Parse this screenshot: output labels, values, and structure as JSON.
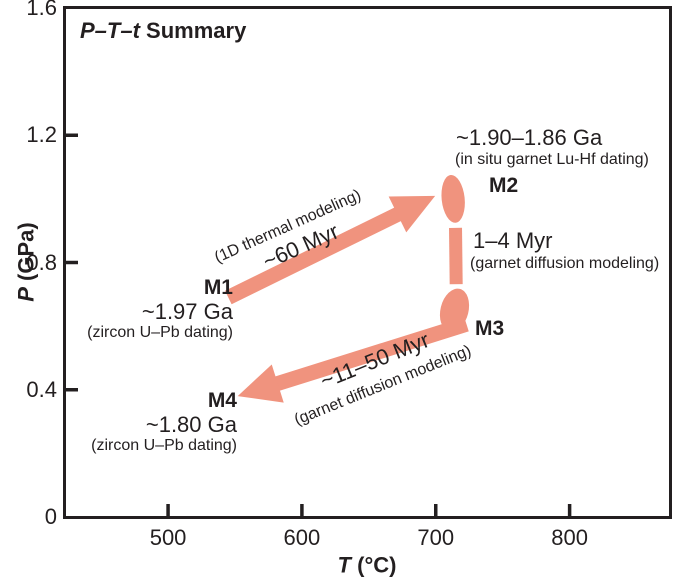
{
  "figure": {
    "title_italic": "P–T–t",
    "title_rest": " Summary",
    "xlabel_italic": "T",
    "xlabel_rest": " (°C)",
    "ylabel_italic": "P",
    "ylabel_rest": " (GPa)"
  },
  "annotations": {
    "m1": {
      "label": "M1",
      "age": "~1.97 Ga",
      "method": "(zircon U–Pb dating)"
    },
    "m2": {
      "label": "M2",
      "age": "~1.90–1.86 Ga",
      "method": "(in situ garnet Lu-Hf dating)"
    },
    "m3": {
      "label": "M3"
    },
    "m4": {
      "label": "M4",
      "age": "~1.80 Ga",
      "method": "(zircon U–Pb dating)"
    },
    "seg_m1_m2": {
      "duration": "~60 Myr",
      "method": "(1D thermal modeling)"
    },
    "seg_m2_m3": {
      "duration": "1–4 Myr",
      "method": "(garnet diffusion modeling)"
    },
    "seg_m3_m4": {
      "duration": "~11–50 Myr",
      "method": "(garnet diffusion modeling)"
    }
  },
  "chart_data": {
    "type": "scatter",
    "title": "P–T–t Summary",
    "xlabel": "T (°C)",
    "ylabel": "P (GPa)",
    "xlim": [
      423,
      875
    ],
    "ylim": [
      0,
      1.6
    ],
    "xticks": [
      500,
      600,
      700,
      800
    ],
    "yticks": [
      0,
      0.4,
      0.8,
      1.2,
      1.6
    ],
    "grid": false,
    "legend": false,
    "accent_color": "#F0937E",
    "line_color": "#231F20",
    "points": [
      {
        "name": "M1",
        "T": 545,
        "P": 0.69,
        "marker": "none",
        "age": "~1.97 Ga",
        "dating": "zircon U–Pb dating"
      },
      {
        "name": "M2",
        "T": 713,
        "P": 1.0,
        "marker": "ellipse",
        "age": "~1.90–1.86 Ga",
        "dating": "in situ garnet Lu-Hf dating"
      },
      {
        "name": "M3",
        "T": 714,
        "P": 0.65,
        "marker": "ellipse"
      },
      {
        "name": "M4",
        "T": 552,
        "P": 0.38,
        "marker": "none",
        "age": "~1.80 Ga",
        "dating": "zircon U–Pb dating"
      }
    ],
    "segments": [
      {
        "from": "M1",
        "to": "M2",
        "style": "arrow",
        "duration": "~60 Myr",
        "method": "1D thermal modeling"
      },
      {
        "from": "M2",
        "to": "M3",
        "style": "bar",
        "duration": "1–4 Myr",
        "method": "garnet diffusion modeling"
      },
      {
        "from": "M3",
        "to": "M4",
        "style": "arrow",
        "duration": "~11–50 Myr",
        "method": "garnet diffusion modeling"
      }
    ]
  }
}
